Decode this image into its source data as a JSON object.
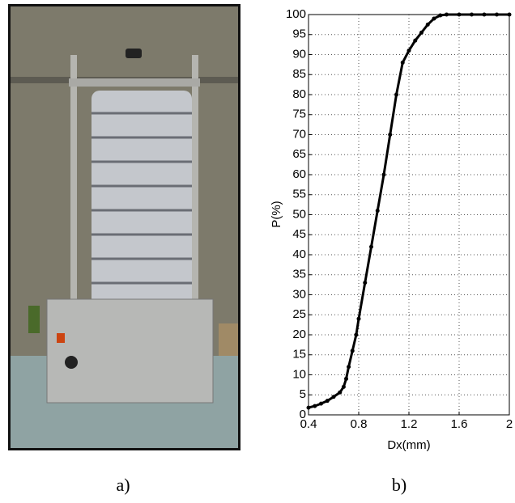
{
  "captions": [
    "a)",
    "b)"
  ],
  "chart_data": {
    "type": "line",
    "y_label": "P(%)",
    "x_label": "Dx(mm)",
    "x": [
      0.4,
      0.45,
      0.5,
      0.55,
      0.6,
      0.65,
      0.68,
      0.7,
      0.72,
      0.75,
      0.78,
      0.8,
      0.85,
      0.9,
      0.95,
      1.0,
      1.05,
      1.1,
      1.15,
      1.2,
      1.25,
      1.3,
      1.35,
      1.4,
      1.45,
      1.5,
      1.6,
      1.7,
      1.8,
      1.9,
      2.0
    ],
    "series": [
      {
        "color": "#000000",
        "values": [
          1.8,
          2.2,
          2.8,
          3.5,
          4.5,
          5.6,
          7,
          9,
          12,
          16,
          20,
          24,
          33,
          42,
          51,
          60,
          70,
          80,
          88,
          91,
          93.5,
          95.5,
          97.5,
          99,
          99.8,
          100,
          100,
          100,
          100,
          100,
          100
        ]
      }
    ],
    "xlim": [
      0.4,
      2
    ],
    "ylim": [
      0,
      100
    ],
    "xticks": [
      0.4,
      0.8,
      1.2,
      1.6,
      2
    ],
    "yticks": [
      0,
      5,
      10,
      15,
      20,
      25,
      30,
      35,
      40,
      45,
      50,
      55,
      60,
      65,
      70,
      75,
      80,
      85,
      90,
      95,
      100
    ],
    "grid": true
  }
}
